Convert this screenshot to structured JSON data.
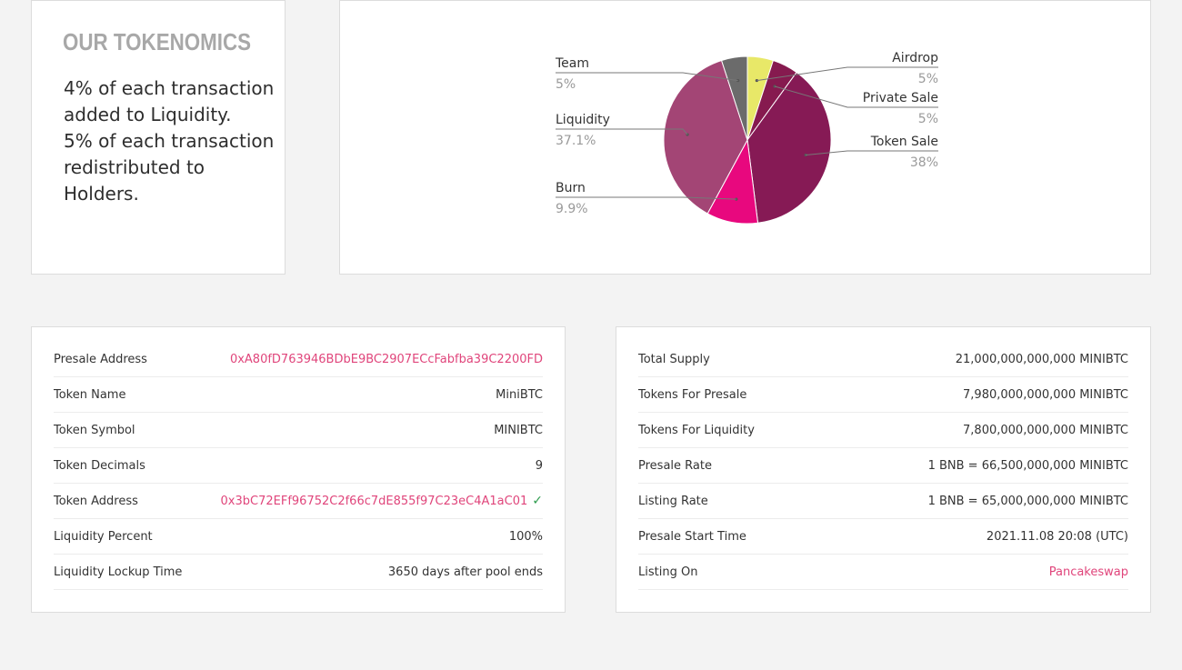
{
  "tokenomics": {
    "title": "OUR TOKENOMICS",
    "lines": [
      "4% of each transaction added to Liquidity.",
      "5% of each transaction redistributed to Holders."
    ]
  },
  "chart_data": {
    "type": "pie",
    "title": "",
    "slices": [
      {
        "label": "Airdrop",
        "value": 5,
        "display": "5%",
        "color": "#e8e868"
      },
      {
        "label": "Private Sale",
        "value": 5,
        "display": "5%",
        "color": "#861a4f"
      },
      {
        "label": "Token Sale",
        "value": 38,
        "display": "38%",
        "color": "#861a55"
      },
      {
        "label": "Burn",
        "value": 9.9,
        "display": "9.9%",
        "color": "#e8087e"
      },
      {
        "label": "Liquidity",
        "value": 37.1,
        "display": "37.1%",
        "color": "#a34575"
      },
      {
        "label": "Team",
        "value": 5,
        "display": "5%",
        "color": "#6b6b6b"
      }
    ],
    "legend": "none",
    "label_placement": "outside with leader lines"
  },
  "presale_info": [
    {
      "key": "Presale Address",
      "value": "0xA80fD763946BDbE9BC2907ECcFabfba39C2200FD",
      "link": true
    },
    {
      "key": "Token Name",
      "value": "MiniBTC"
    },
    {
      "key": "Token Symbol",
      "value": "MINIBTC"
    },
    {
      "key": "Token Decimals",
      "value": "9"
    },
    {
      "key": "Token Address",
      "value": "0x3bC72EFf96752C2f66c7dE855f97C23eC4A1aC01",
      "link": true,
      "verified_icon": "check-icon"
    },
    {
      "key": "Liquidity Percent",
      "value": "100%"
    },
    {
      "key": "Liquidity Lockup Time",
      "value": "3650 days after pool ends"
    }
  ],
  "supply_info": [
    {
      "key": "Total Supply",
      "value": "21,000,000,000,000 MINIBTC"
    },
    {
      "key": "Tokens For Presale",
      "value": "7,980,000,000,000 MINIBTC"
    },
    {
      "key": "Tokens For Liquidity",
      "value": "7,800,000,000,000 MINIBTC"
    },
    {
      "key": "Presale Rate",
      "value": "1 BNB = 66,500,000,000 MINIBTC"
    },
    {
      "key": "Listing Rate",
      "value": "1 BNB = 65,000,000,000 MINIBTC"
    },
    {
      "key": "Presale Start Time",
      "value": "2021.11.08 20:08 (UTC)"
    },
    {
      "key": "Listing On",
      "value": "Pancakeswap",
      "link": true
    }
  ],
  "colors": {
    "accent": "#e0457b",
    "verified": "#2e9c4e"
  }
}
